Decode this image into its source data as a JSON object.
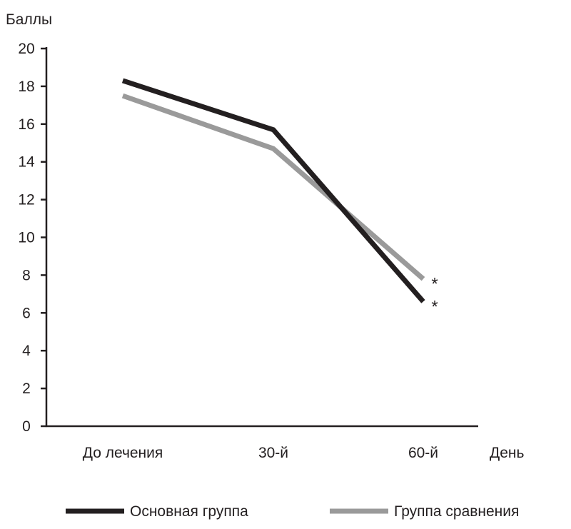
{
  "chart_data": {
    "type": "line",
    "ylabel": "Баллы",
    "xlabel": "День",
    "categories": [
      "До лечения",
      "30-й",
      "60-й"
    ],
    "ylim": [
      0,
      20
    ],
    "yticks": [
      0,
      2,
      4,
      6,
      8,
      10,
      12,
      14,
      16,
      18,
      20
    ],
    "grid": false,
    "legend_position": "bottom",
    "series": [
      {
        "name": "Основная группа",
        "values": [
          18.3,
          15.7,
          6.6
        ],
        "color": "#231f20",
        "annotations": [
          "",
          "",
          "*"
        ]
      },
      {
        "name": "Группа сравнения",
        "values": [
          17.5,
          14.7,
          7.8
        ],
        "color": "#9a9a9a",
        "annotations": [
          "",
          "",
          "*"
        ]
      }
    ]
  }
}
